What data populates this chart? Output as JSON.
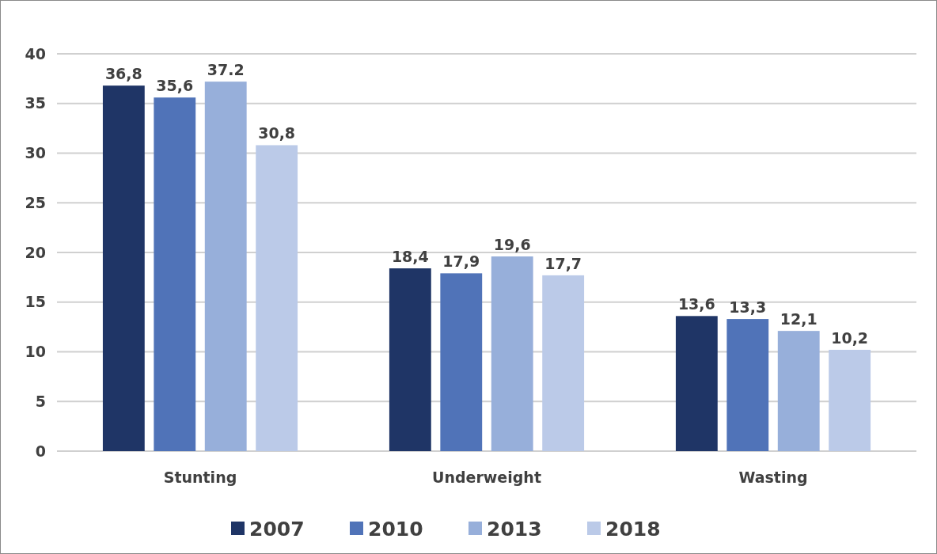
{
  "chart_data": {
    "type": "bar",
    "categories": [
      "Stunting",
      "Underweight",
      "Wasting"
    ],
    "series": [
      {
        "name": "2007",
        "color": "#1f3566",
        "values": [
          36.8,
          18.4,
          13.6
        ],
        "value_labels": [
          "36,8",
          "18,4",
          "13,6"
        ]
      },
      {
        "name": "2010",
        "color": "#5073b8",
        "values": [
          35.6,
          17.9,
          13.3
        ],
        "value_labels": [
          "35,6",
          "17,9",
          "13,3"
        ]
      },
      {
        "name": "2013",
        "color": "#97afda",
        "values": [
          37.2,
          19.6,
          12.1
        ],
        "value_labels": [
          "37.2",
          "19,6",
          "12,1"
        ]
      },
      {
        "name": "2018",
        "color": "#bbcae8",
        "values": [
          30.8,
          17.7,
          10.2
        ],
        "value_labels": [
          "30,8",
          "17,7",
          "10,2"
        ]
      }
    ],
    "ylim": [
      0,
      40
    ],
    "yticks": [
      0,
      5,
      10,
      15,
      20,
      25,
      30,
      35,
      40
    ],
    "grid": "y",
    "legend": "bottom"
  }
}
